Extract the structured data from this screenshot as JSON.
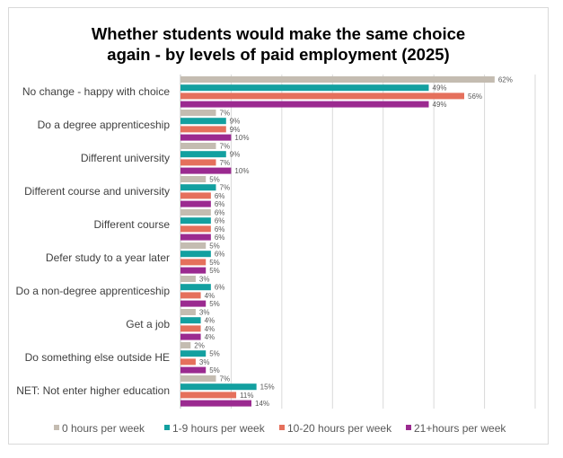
{
  "chart_data": {
    "type": "bar",
    "orientation": "horizontal",
    "title": "Whether students would make the same choice again - by levels of paid employment (2025)",
    "title_lines": [
      "Whether students would make the same choice",
      "again - by levels of paid employment (2025)"
    ],
    "categories": [
      "No change - happy with choice",
      "Do a degree apprenticeship",
      "Different university",
      "Different course and university",
      "Different course",
      "Defer study to a year later",
      "Do a non-degree apprenticeship",
      "Get a job",
      "Do something else outside HE",
      "NET: Not enter higher education"
    ],
    "series": [
      {
        "name": "0 hours per week",
        "color": "#c4bcb1",
        "values": [
          62,
          7,
          7,
          5,
          6,
          5,
          3,
          3,
          2,
          7
        ]
      },
      {
        "name": "1-9 hours per week",
        "color": "#13a0a0",
        "values": [
          49,
          9,
          9,
          7,
          6,
          6,
          6,
          4,
          5,
          15
        ]
      },
      {
        "name": "10-20 hours per week",
        "color": "#e5705c",
        "values": [
          56,
          9,
          7,
          6,
          6,
          5,
          4,
          4,
          3,
          11
        ]
      },
      {
        "name": "21+hours per week",
        "color": "#9b2a90",
        "values": [
          49,
          10,
          10,
          6,
          6,
          5,
          5,
          4,
          5,
          14
        ]
      }
    ],
    "value_suffix": "%",
    "xlim": [
      0,
      70
    ],
    "x_tick_step": 10,
    "grid": true,
    "legend_position": "bottom"
  }
}
